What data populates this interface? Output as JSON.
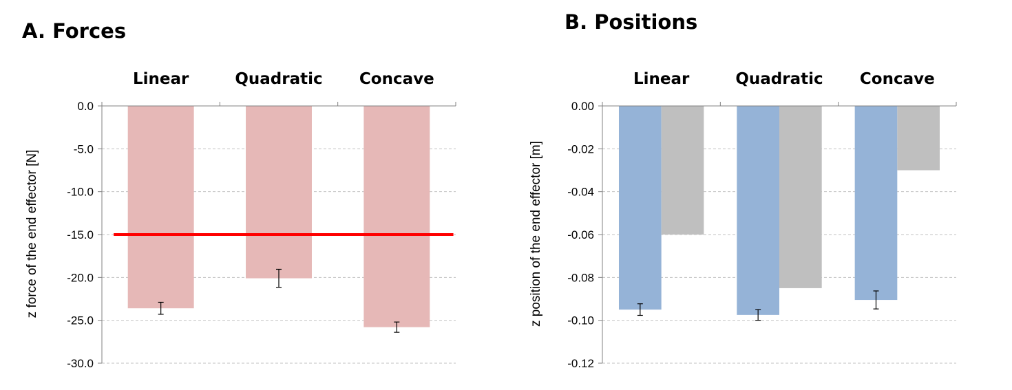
{
  "chart_data": [
    {
      "type": "bar",
      "panel_title": "A.  Forces",
      "categories": [
        "Linear",
        "Quadratic",
        "Concave"
      ],
      "ylabel": "z force of the end effector [N]",
      "ylim": [
        -30,
        0
      ],
      "yticks": [
        "0.0",
        "-5.0",
        "-10.0",
        "-15.0",
        "-20.0",
        "-25.0",
        "-30.0"
      ],
      "grid": true,
      "series": [
        {
          "values": [
            -23.6,
            -20.1,
            -25.8
          ],
          "errors": [
            0.7,
            1.05,
            0.6
          ],
          "color": "#e6b8b7"
        }
      ],
      "reference_line": {
        "value": -15.0,
        "color": "#ff0000"
      }
    },
    {
      "type": "bar",
      "panel_title": "B. Positions",
      "categories": [
        "Linear",
        "Quadratic",
        "Concave"
      ],
      "ylabel": "z position of the end effector [m]",
      "ylim": [
        -0.12,
        0
      ],
      "yticks": [
        "0.00",
        "-0.02",
        "-0.04",
        "-0.06",
        "-0.08",
        "-0.10",
        "-0.12"
      ],
      "grid": true,
      "series": [
        {
          "values": [
            -0.095,
            -0.0975,
            -0.0905
          ],
          "errors": [
            0.0027,
            0.0025,
            0.0042
          ],
          "color": "#95b3d7"
        },
        {
          "values": [
            -0.06,
            -0.085,
            -0.03
          ],
          "color": "#bfbfbf"
        }
      ]
    }
  ]
}
